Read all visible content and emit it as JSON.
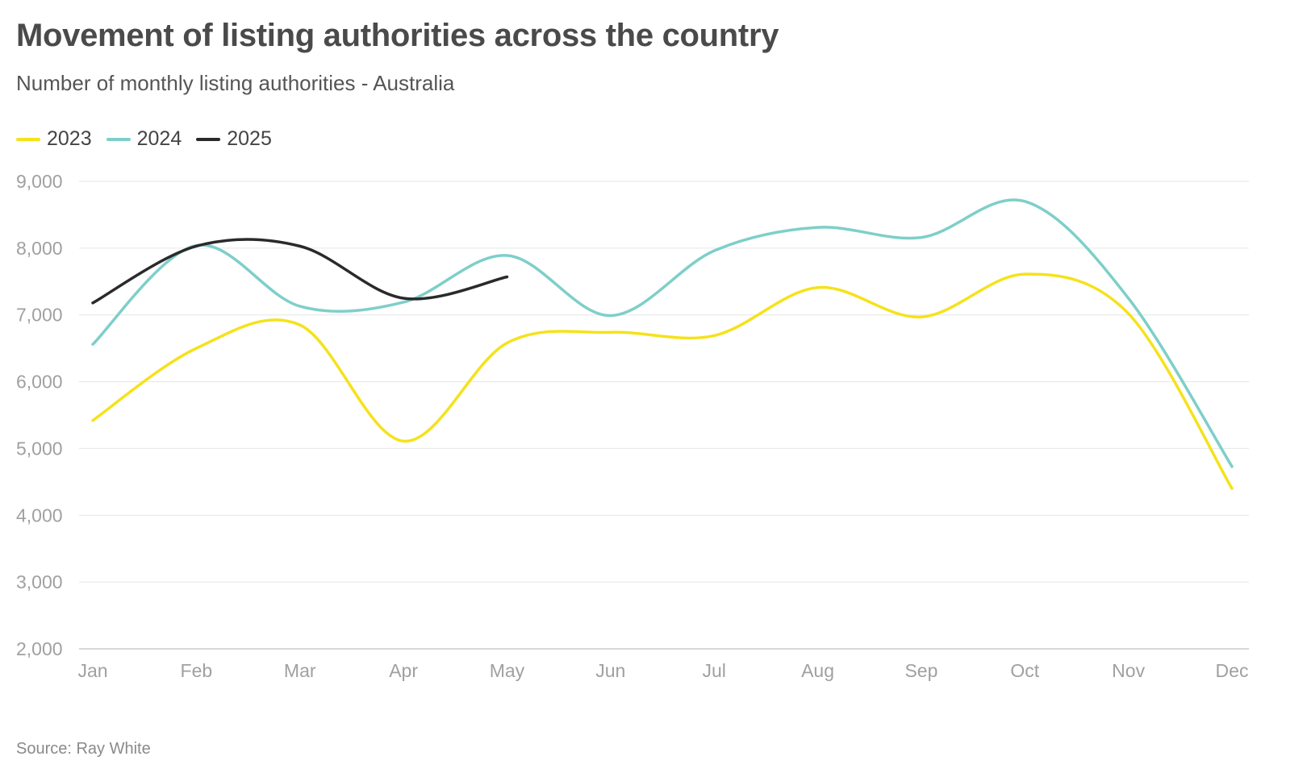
{
  "title": "Movement of listing authorities across the country",
  "subtitle": "Number of monthly listing authorities - Australia",
  "source": "Source: Ray White",
  "chart_data": {
    "type": "line",
    "categories": [
      "Jan",
      "Feb",
      "Mar",
      "Apr",
      "May",
      "Jun",
      "Jul",
      "Aug",
      "Sep",
      "Oct",
      "Nov",
      "Dec"
    ],
    "ylim": [
      2000,
      9000
    ],
    "yticks": [
      2000,
      3000,
      4000,
      5000,
      6000,
      7000,
      8000,
      9000
    ],
    "ytick_labels": [
      "2,000",
      "3,000",
      "4,000",
      "5,000",
      "6,000",
      "7,000",
      "8,000",
      "9,000"
    ],
    "grid": "horizontal",
    "legend_position": "top-left",
    "smooth": true,
    "series": [
      {
        "name": "2023",
        "color": "#f5e21b",
        "values": [
          5420,
          6500,
          6850,
          5110,
          6580,
          6740,
          6690,
          7410,
          6970,
          7610,
          7020,
          4400
        ]
      },
      {
        "name": "2024",
        "color": "#7ecfc9",
        "values": [
          6560,
          8040,
          7130,
          7190,
          7890,
          6990,
          7960,
          8310,
          8160,
          8700,
          7250,
          4730
        ]
      },
      {
        "name": "2025",
        "color": "#2a2a2a",
        "values": [
          7180,
          8030,
          8030,
          7250,
          7570,
          null,
          null,
          null,
          null,
          null,
          null,
          null
        ]
      }
    ]
  }
}
